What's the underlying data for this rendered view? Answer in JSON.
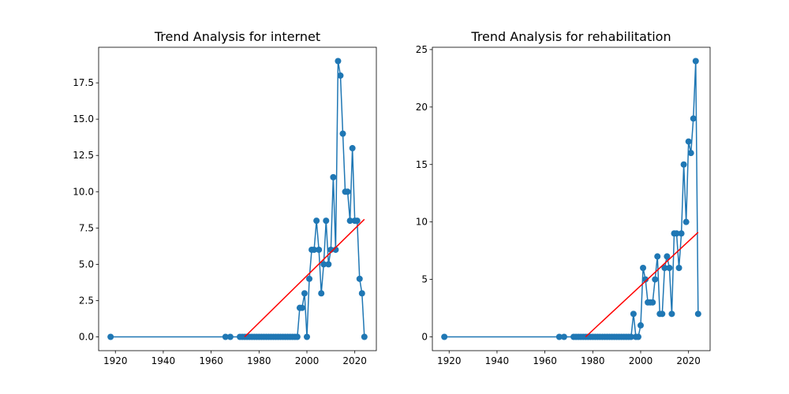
{
  "chart_data": [
    {
      "type": "line",
      "title": "Trend Analysis for internet",
      "xlabel": "",
      "ylabel": "",
      "xlim": [
        1913,
        2029
      ],
      "ylim": [
        -0.95,
        19.95
      ],
      "xticks": [
        1920,
        1940,
        1960,
        1980,
        2000,
        2020
      ],
      "yticks": [
        0.0,
        2.5,
        5.0,
        7.5,
        10.0,
        12.5,
        15.0,
        17.5
      ],
      "ytick_labels": [
        "0.0",
        "2.5",
        "5.0",
        "7.5",
        "10.0",
        "12.5",
        "15.0",
        "17.5"
      ],
      "grid": false,
      "series": [
        {
          "kind": "line-marker",
          "color": "#1f77b4",
          "x": [
            1918,
            1966,
            1968,
            1972,
            1973,
            1974,
            1975,
            1976,
            1977,
            1978,
            1979,
            1980,
            1981,
            1982,
            1983,
            1984,
            1985,
            1986,
            1987,
            1988,
            1989,
            1990,
            1991,
            1992,
            1993,
            1994,
            1995,
            1996,
            1997,
            1998,
            1999,
            2000,
            2001,
            2002,
            2003,
            2004,
            2005,
            2006,
            2007,
            2008,
            2009,
            2010,
            2011,
            2012,
            2013,
            2014,
            2015,
            2016,
            2017,
            2018,
            2019,
            2020,
            2021,
            2022,
            2023,
            2024
          ],
          "y": [
            0,
            0,
            0,
            0,
            0,
            0,
            0,
            0,
            0,
            0,
            0,
            0,
            0,
            0,
            0,
            0,
            0,
            0,
            0,
            0,
            0,
            0,
            0,
            0,
            0,
            0,
            0,
            0,
            2,
            2,
            3,
            0,
            4,
            6,
            6,
            8,
            6,
            3,
            5,
            8,
            5,
            6,
            11,
            6,
            19,
            18,
            14,
            10,
            10,
            8,
            13,
            8,
            8,
            4,
            3,
            0
          ]
        },
        {
          "kind": "trend",
          "color": "#ff0000",
          "x": [
            1974,
            2024
          ],
          "y": [
            0,
            8.1
          ]
        }
      ]
    },
    {
      "type": "line",
      "title": "Trend Analysis for rehabilitation",
      "xlabel": "",
      "ylabel": "",
      "xlim": [
        1913,
        2029
      ],
      "ylim": [
        -1.2,
        25.2
      ],
      "xticks": [
        1920,
        1940,
        1960,
        1980,
        2000,
        2020
      ],
      "yticks": [
        0,
        5,
        10,
        15,
        20,
        25
      ],
      "ytick_labels": [
        "0",
        "5",
        "10",
        "15",
        "20",
        "25"
      ],
      "grid": false,
      "series": [
        {
          "kind": "line-marker",
          "color": "#1f77b4",
          "x": [
            1918,
            1966,
            1968,
            1972,
            1973,
            1974,
            1975,
            1976,
            1977,
            1978,
            1979,
            1980,
            1981,
            1982,
            1983,
            1984,
            1985,
            1986,
            1987,
            1988,
            1989,
            1990,
            1991,
            1992,
            1993,
            1994,
            1995,
            1996,
            1997,
            1998,
            1999,
            2000,
            2001,
            2002,
            2003,
            2004,
            2005,
            2006,
            2007,
            2008,
            2009,
            2010,
            2011,
            2012,
            2013,
            2014,
            2015,
            2016,
            2017,
            2018,
            2019,
            2020,
            2021,
            2022,
            2023,
            2024
          ],
          "y": [
            0,
            0,
            0,
            0,
            0,
            0,
            0,
            0,
            0,
            0,
            0,
            0,
            0,
            0,
            0,
            0,
            0,
            0,
            0,
            0,
            0,
            0,
            0,
            0,
            0,
            0,
            0,
            0,
            2,
            0,
            0,
            1,
            6,
            5,
            3,
            3,
            3,
            5,
            7,
            2,
            2,
            6,
            7,
            6,
            2,
            9,
            9,
            6,
            9,
            15,
            10,
            17,
            16,
            19,
            24,
            2
          ]
        },
        {
          "kind": "trend",
          "color": "#ff0000",
          "x": [
            1977,
            2024
          ],
          "y": [
            0,
            9.1
          ]
        }
      ]
    }
  ]
}
